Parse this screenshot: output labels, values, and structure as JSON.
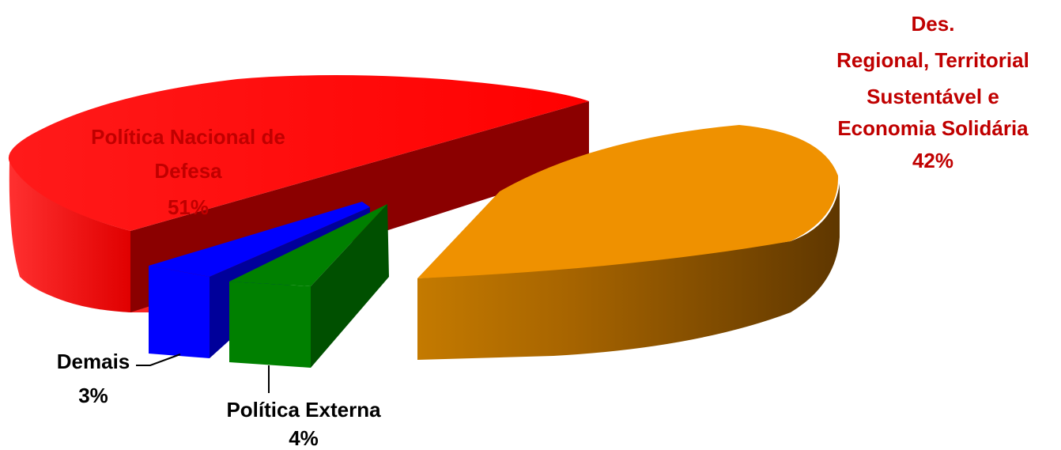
{
  "chart_data": {
    "type": "pie",
    "variant": "3d-exploded",
    "title": "",
    "slices": [
      {
        "label_lines": [
          "Política Nacional de",
          "Defesa"
        ],
        "value": 51,
        "value_label": "51%",
        "color": "#ff0000",
        "side_color": "#8b0000",
        "label_color": "#c00000"
      },
      {
        "label_lines": [
          "Des.",
          "Regional, Territorial",
          "Sustentável e",
          "Economia Solidária"
        ],
        "value": 42,
        "value_label": "42%",
        "color": "#ef9100",
        "side_color": "#6b3f00",
        "label_color": "#c00000"
      },
      {
        "label_lines": [
          "Política Externa"
        ],
        "value": 4,
        "value_label": "4%",
        "color": "#008000",
        "side_color": "#005000",
        "label_color": "#000000"
      },
      {
        "label_lines": [
          "Demais"
        ],
        "value": 3,
        "value_label": "3%",
        "color": "#0000ff",
        "side_color": "#00009a",
        "label_color": "#000000"
      }
    ],
    "legend": "none"
  }
}
